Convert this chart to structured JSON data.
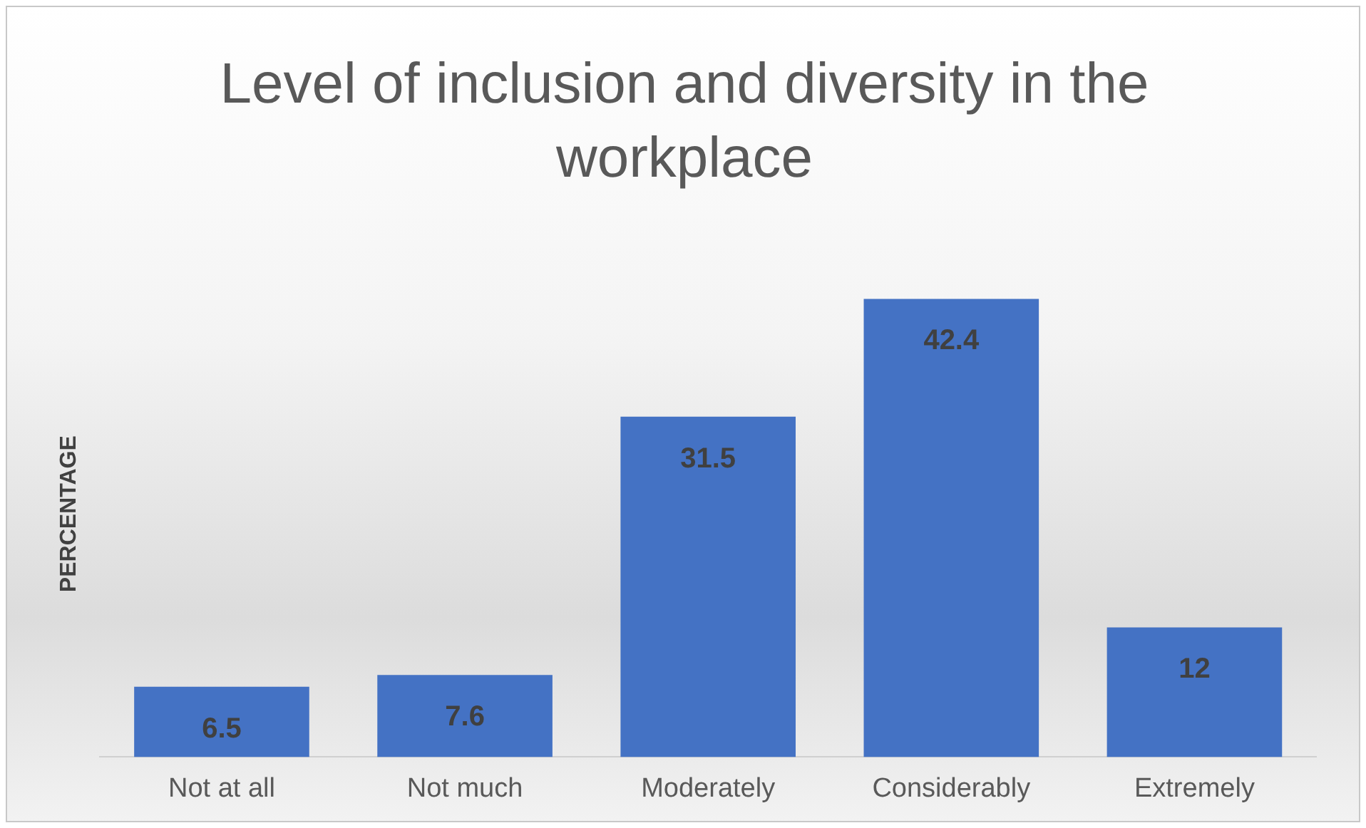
{
  "chart_data": {
    "type": "bar",
    "title": "Level of inclusion and diversity in the workplace",
    "ylabel": "PERCENTAGE",
    "categories": [
      "Not at all",
      "Not much",
      "Moderately",
      "Considerably",
      "Extremely"
    ],
    "values": [
      6.5,
      7.6,
      31.5,
      42.4,
      12
    ],
    "color": "#4472c4",
    "data_labels": true,
    "grid": false,
    "legend": false
  }
}
